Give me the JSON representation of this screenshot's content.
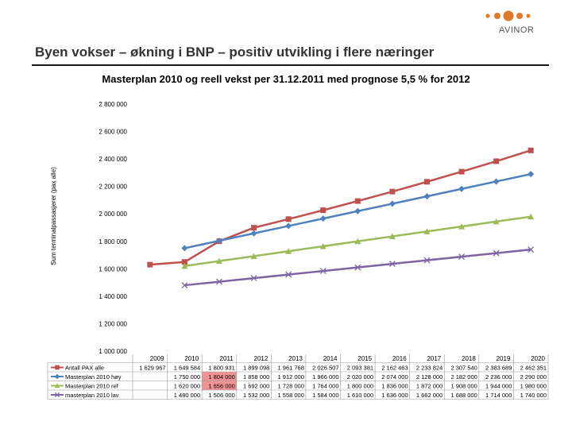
{
  "slide": {
    "title": "Byen vokser – økning i BNP – positiv utvikling i flere næringer",
    "logo_text": "AVINOR"
  },
  "colors": {
    "logo": "#e07a2b",
    "highlight": "#f08080"
  },
  "chart_data": {
    "type": "line",
    "title": "Masterplan 2010 og reell vekst per 31.12.2011 med prognose 5,5 % for 2012",
    "ylabel": "Sum terminalpassasjerer (pax alle)",
    "ylim": [
      1000000,
      2800000
    ],
    "yticks": [
      1000000,
      1200000,
      1400000,
      1600000,
      1800000,
      2000000,
      2200000,
      2400000,
      2600000,
      2800000
    ],
    "ytick_labels": [
      "1 000 000",
      "1 200 000",
      "1 400 000",
      "1 600 000",
      "1 800 000",
      "2 000 000",
      "2 200 000",
      "2 400 000",
      "2 600 000",
      "2 800 000"
    ],
    "categories": [
      "2009",
      "2010",
      "2011",
      "2012",
      "2013",
      "2014",
      "2015",
      "2016",
      "2017",
      "2018",
      "2019",
      "2020"
    ],
    "grid": false,
    "legend": "table-below",
    "series": [
      {
        "name": "Antall PAX alle",
        "color": "#c0504d",
        "marker": "square",
        "values": [
          1629967,
          1649584,
          1800931,
          1899098,
          1961768,
          2026507,
          2093381,
          2162463,
          2233824,
          2307540,
          2383689,
          2462351
        ],
        "labels": [
          "1 629 967",
          "1 649 584",
          "1 800 931",
          "1 899 098",
          "1 961 768",
          "2 026 507",
          "2 093 381",
          "2 162 463",
          "2 233 824",
          "2 307 540",
          "2 383 689",
          "2 462 351"
        ]
      },
      {
        "name": "Masterplan 2010 høy",
        "color": "#4f81bd",
        "marker": "diamond",
        "values": [
          null,
          1750000,
          1804000,
          1858000,
          1912000,
          1966000,
          2020000,
          2074000,
          2128000,
          2182000,
          2236000,
          2290000
        ],
        "labels": [
          "",
          "1 750 000",
          "1 804 000",
          "1 858 000",
          "1 912 000",
          "1 966 000",
          "2 020 000",
          "2 074 000",
          "2 128 000",
          "2 182 000",
          "2 236 000",
          "2 290 000"
        ]
      },
      {
        "name": "Masterplan 2010 ref",
        "color": "#9bbb59",
        "marker": "triangle",
        "values": [
          null,
          1620000,
          1656000,
          1692000,
          1728000,
          1764000,
          1800000,
          1836000,
          1872000,
          1908000,
          1944000,
          1980000
        ],
        "labels": [
          "",
          "1 620 000",
          "1 656 000",
          "1 692 000",
          "1 728 000",
          "1 764 000",
          "1 800 000",
          "1 836 000",
          "1 872 000",
          "1 908 000",
          "1 944 000",
          "1 980 000"
        ]
      },
      {
        "name": "masterplan 2010 lav",
        "color": "#8064a2",
        "marker": "x",
        "values": [
          null,
          1480000,
          1506000,
          1532000,
          1558000,
          1584000,
          1610000,
          1636000,
          1662000,
          1688000,
          1714000,
          1740000
        ],
        "labels": [
          "",
          "1 480 000",
          "1 506 000",
          "1 532 000",
          "1 558 000",
          "1 584 000",
          "1 610 000",
          "1 636 000",
          "1 662 000",
          "1 688 000",
          "1 714 000",
          "1 740 000"
        ]
      }
    ],
    "highlight": {
      "category": "2011",
      "series": [
        "Masterplan 2010 høy",
        "Masterplan 2010 ref"
      ]
    }
  }
}
